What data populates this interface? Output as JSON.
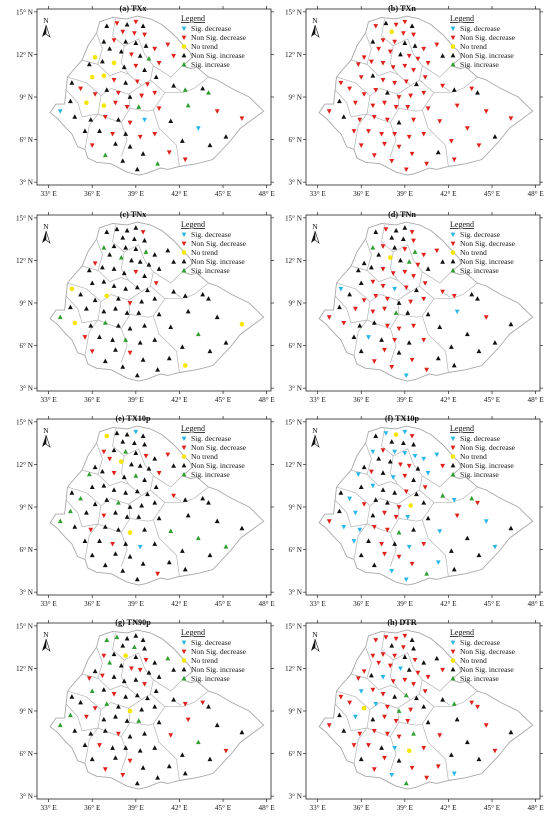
{
  "legend": {
    "title": "Legend",
    "items": [
      {
        "key": "sig_dec",
        "label": "Sig. decrease",
        "color": "#29b6e8",
        "shape": "triangle-down"
      },
      {
        "key": "nonsig_dec",
        "label": "Non Sig. decrease",
        "color": "#e0201b",
        "shape": "triangle-down"
      },
      {
        "key": "no_trend",
        "label": "No trend",
        "color": "#f5e600",
        "shape": "circle"
      },
      {
        "key": "nonsig_inc",
        "label": "Non Sig. increase",
        "color": "#111111",
        "shape": "triangle-up"
      },
      {
        "key": "sig_inc",
        "label": "Sig. increase",
        "color": "#2e9e2e",
        "shape": "triangle-up"
      }
    ]
  },
  "axes": {
    "x_ticks": [
      "33° E",
      "36° E",
      "39° E",
      "42° E",
      "45° E",
      "48° E"
    ],
    "y_ticks": [
      "3° N",
      "6° N",
      "9° N",
      "12° N",
      "15° N"
    ],
    "x_values": [
      33,
      36,
      39,
      42,
      45,
      48
    ],
    "y_values": [
      3,
      6,
      9,
      12,
      15
    ],
    "lon_range": [
      32.2,
      48.3
    ],
    "lat_range": [
      2.8,
      15.2
    ]
  },
  "north_label": "N",
  "panels": [
    {
      "title": "(a) TXx",
      "mix": [
        0.04,
        0.4,
        0.03,
        0.45,
        0.08
      ]
    },
    {
      "title": "(b) TXn",
      "mix": [
        0.01,
        0.8,
        0.01,
        0.18,
        0.0
      ]
    },
    {
      "title": "(c) TNx",
      "mix": [
        0.02,
        0.18,
        0.03,
        0.68,
        0.09
      ]
    },
    {
      "title": "(d) TNn",
      "mix": [
        0.05,
        0.52,
        0.03,
        0.38,
        0.02
      ]
    },
    {
      "title": "(e) TX10p",
      "mix": [
        0.04,
        0.16,
        0.03,
        0.68,
        0.09
      ]
    },
    {
      "title": "(f) TX10p",
      "mix": [
        0.32,
        0.22,
        0.01,
        0.42,
        0.03
      ]
    },
    {
      "title": "(g) TN90p",
      "mix": [
        0.02,
        0.2,
        0.02,
        0.64,
        0.12
      ]
    },
    {
      "title": "(h) DTR",
      "mix": [
        0.08,
        0.62,
        0.01,
        0.27,
        0.02
      ]
    }
  ]
}
